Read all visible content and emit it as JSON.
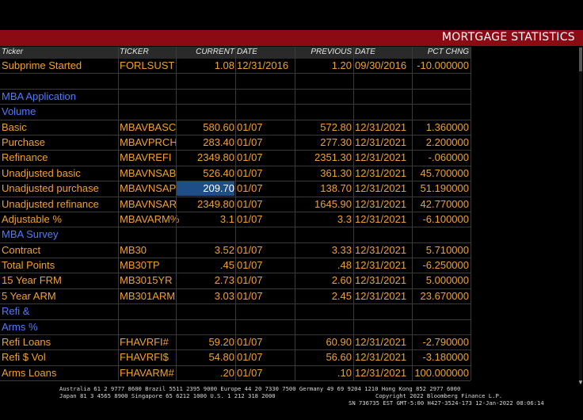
{
  "window": {
    "title": "MORTGAGE STATISTICS"
  },
  "header": [
    "Ticker",
    "TICKER",
    "CURRENT",
    "DATE",
    "PREVIOUS",
    "DATE",
    "PCT CHNG"
  ],
  "rows": [
    {
      "type": "data",
      "cells": [
        "Subprime Started",
        "FORLSUST",
        "1.08",
        "12/31/2016",
        "1.20",
        "09/30/2016",
        "-10.000000"
      ]
    },
    {
      "type": "blank",
      "cells": [
        "",
        "",
        "",
        "",
        "",
        "",
        ""
      ]
    },
    {
      "type": "section",
      "cells": [
        "MBA Application",
        "",
        "",
        "",
        "",
        "",
        ""
      ]
    },
    {
      "type": "section",
      "cells": [
        "Volume",
        "",
        "",
        "",
        "",
        "",
        ""
      ]
    },
    {
      "type": "data",
      "cells": [
        "Basic",
        "MBAVBASC",
        "580.60",
        "01/07",
        "572.80",
        "12/31/2021",
        "1.360000"
      ]
    },
    {
      "type": "data",
      "cells": [
        "Purchase",
        "MBAVPRCH",
        "283.40",
        "01/07",
        "277.30",
        "12/31/2021",
        "2.200000"
      ]
    },
    {
      "type": "data",
      "cells": [
        "Refinance",
        "MBAVREFI",
        "2349.80",
        "01/07",
        "2351.30",
        "12/31/2021",
        "-.060000"
      ]
    },
    {
      "type": "data",
      "cells": [
        "Unadjusted basic",
        "MBAVNSAB",
        "526.40",
        "01/07",
        "361.30",
        "12/31/2021",
        "45.700000"
      ]
    },
    {
      "type": "data",
      "highlight": true,
      "cells": [
        "Unadjusted purchase",
        "MBAVNSAP",
        "209.70",
        "01/07",
        "138.70",
        "12/31/2021",
        "51.190000"
      ]
    },
    {
      "type": "data",
      "cells": [
        "Unadjusted refinance",
        "MBAVNSAR",
        "2349.80",
        "01/07",
        "1645.90",
        "12/31/2021",
        "42.770000"
      ]
    },
    {
      "type": "data",
      "cells": [
        "Adjustable %",
        "MBAVARM%",
        "3.1",
        "01/07",
        "3.3",
        "12/31/2021",
        "-6.100000"
      ]
    },
    {
      "type": "section",
      "cells": [
        "MBA Survey",
        "",
        "",
        "",
        "",
        "",
        ""
      ]
    },
    {
      "type": "data",
      "cells": [
        "Contract",
        "MB30",
        "3.52",
        "01/07",
        "3.33",
        "12/31/2021",
        "5.710000"
      ]
    },
    {
      "type": "data",
      "cells": [
        "Total Points",
        "MB30TP",
        ".45",
        "01/07",
        ".48",
        "12/31/2021",
        "-6.250000"
      ]
    },
    {
      "type": "data",
      "cells": [
        "15 Year FRM",
        "MB3015YR",
        "2.73",
        "01/07",
        "2.60",
        "12/31/2021",
        "5.000000"
      ]
    },
    {
      "type": "data",
      "cells": [
        "5 Year ARM",
        "MB301ARM",
        "3.03",
        "01/07",
        "2.45",
        "12/31/2021",
        "23.670000"
      ]
    },
    {
      "type": "section",
      "cells": [
        "Refi &",
        "",
        "",
        "",
        "",
        "",
        ""
      ]
    },
    {
      "type": "section",
      "cells": [
        "Arms %",
        "",
        "",
        "",
        "",
        "",
        ""
      ]
    },
    {
      "type": "data",
      "cells": [
        "Refi Loans",
        "FHAVRFI#",
        "59.20",
        "01/07",
        "60.90",
        "12/31/2021",
        "-2.790000"
      ]
    },
    {
      "type": "data",
      "cells": [
        "Refi $ Vol",
        "FHAVRFI$",
        "54.80",
        "01/07",
        "56.60",
        "12/31/2021",
        "-3.180000"
      ]
    },
    {
      "type": "data",
      "cells": [
        "Arms Loans",
        "FHAVARM#",
        ".20",
        "01/07",
        ".10",
        "12/31/2021",
        "100.000000"
      ]
    }
  ],
  "footer": {
    "line1": "Australia 61 2 9777 8600 Brazil 5511 2395 9000 Europe 44 20 7330 7500 Germany 49 69 9204 1210 Hong Kong 852 2977 6000",
    "line2a": "Japan 81 3 4565 8900       Singapore 65 6212 1000       U.S. 1 212 318 2000",
    "line2b": "Copyright 2022 Bloomberg Finance L.P.",
    "line3": "SN 736735 EST  GMT-5:00 H427-3524-173 12-Jan-2022 08:06:14"
  },
  "colors": {
    "title_bar": "#8b0a14",
    "text": "#f0a030",
    "section": "#4f7bff",
    "highlight": "#1d4f86"
  }
}
